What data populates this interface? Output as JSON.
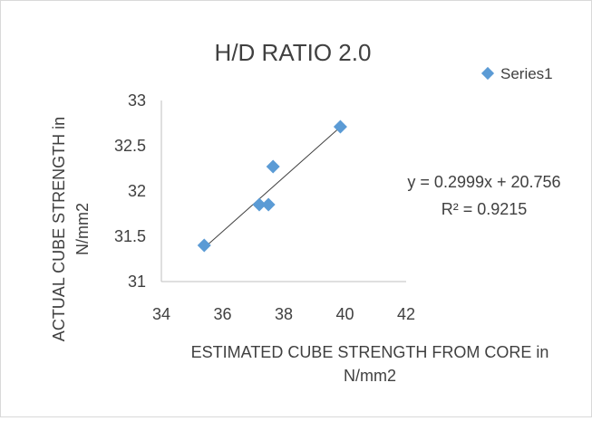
{
  "chart_data": {
    "type": "scatter",
    "title": "H/D RATIO 2.0",
    "xlabel_line1": "ESTIMATED CUBE STRENGTH FROM CORE in",
    "xlabel_line2": "N/mm2",
    "ylabel_line1": "ACTUAL CUBE STRENGTH in",
    "ylabel_line2": "N/mm2",
    "xlim": [
      34,
      42
    ],
    "ylim": [
      31,
      33
    ],
    "x_ticks": [
      "34",
      "36",
      "38",
      "40",
      "42"
    ],
    "y_ticks": [
      "31",
      "31.5",
      "32",
      "32.5",
      "33"
    ],
    "grid": false,
    "legend_position": "top-right",
    "series": [
      {
        "name": "Series1",
        "color": "#5b9bd5",
        "marker": "diamond",
        "points": [
          {
            "x": 35.4,
            "y": 31.4
          },
          {
            "x": 37.2,
            "y": 31.85
          },
          {
            "x": 37.5,
            "y": 31.85
          },
          {
            "x": 37.65,
            "y": 32.27
          },
          {
            "x": 39.85,
            "y": 32.71
          }
        ]
      }
    ],
    "trendline": {
      "type": "linear",
      "slope": 0.2999,
      "intercept": 20.756,
      "x_range": [
        35.4,
        39.85
      ],
      "color": "#404040",
      "equation": "y = 0.2999x + 20.756",
      "r_squared": "R² = 0.9215"
    }
  }
}
